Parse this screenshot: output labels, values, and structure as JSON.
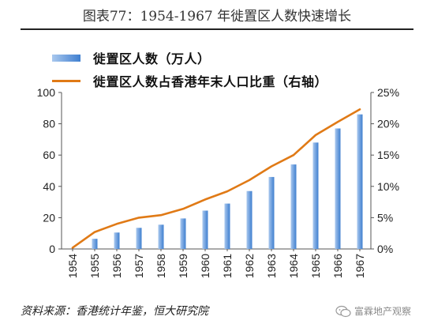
{
  "header": {
    "title": "图表77：1954-1967 年徙置区人数快速增长"
  },
  "legend": {
    "bar_label": "徙置区人数（万人）",
    "line_label": "徙置区人数占香港年末人口比重（右轴）"
  },
  "footer": {
    "source": "资料来源：香港统计年鉴，恒大研究院"
  },
  "watermark": {
    "text": "富霖地产观察"
  },
  "colors": {
    "bar_light": "#a9c8ee",
    "bar_dark": "#3f7fd0",
    "line": "#e07a16",
    "axis": "#555555"
  },
  "chart_data": {
    "type": "bar",
    "title": "图表77：1954-1967 年徙置区人数快速增长",
    "xlabel": "",
    "ylabel": "",
    "categories": [
      "1954",
      "1955",
      "1956",
      "1957",
      "1958",
      "1959",
      "1960",
      "1961",
      "1962",
      "1963",
      "1964",
      "1965",
      "1966",
      "1967"
    ],
    "series": [
      {
        "name": "徙置区人数（万人）",
        "type": "bar",
        "axis": "left",
        "values": [
          0,
          6.5,
          10.5,
          13.5,
          15.5,
          19.5,
          24.5,
          29,
          37,
          46,
          54,
          68,
          77,
          86
        ]
      },
      {
        "name": "徙置区人数占香港年末人口比重（右轴）",
        "type": "line",
        "axis": "right",
        "values": [
          0.2,
          2.7,
          4.0,
          5.0,
          5.4,
          6.4,
          7.9,
          9.2,
          11.0,
          13.2,
          15.0,
          18.2,
          20.3,
          22.3
        ]
      }
    ],
    "y_left": {
      "range": [
        0,
        100
      ],
      "ticks": [
        "0",
        "20",
        "40",
        "60",
        "80",
        "100"
      ]
    },
    "y_right": {
      "range": [
        0,
        25
      ],
      "ticks": [
        "0%",
        "5%",
        "10%",
        "15%",
        "20%",
        "25%"
      ]
    },
    "x_tick_rotation": "vertical",
    "grid": false,
    "legend_position": "top-left"
  }
}
